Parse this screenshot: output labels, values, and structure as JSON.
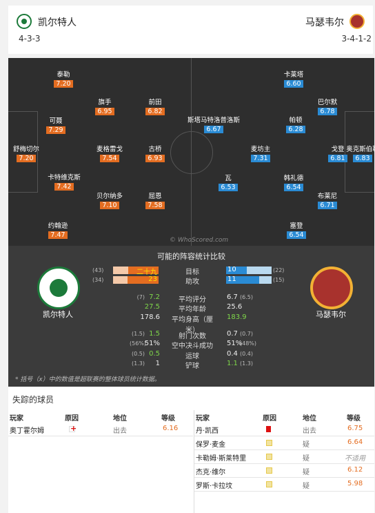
{
  "header": {
    "home_name": "凯尔特人",
    "away_name": "马瑟韦尔",
    "home_formation": "4-3-3",
    "away_formation": "3-4-1-2"
  },
  "pitch": {
    "watermark": "© WhoScored.com",
    "home_players": [
      {
        "name": "泰勒",
        "rating": "7.20"
      },
      {
        "name": "可聂",
        "rating": "7.29"
      },
      {
        "name": "舒梅切尔",
        "rating": "7.20"
      },
      {
        "name": "卡特维克斯",
        "rating": "7.42"
      },
      {
        "name": "约翰逊",
        "rating": "7.47"
      },
      {
        "name": "旗手",
        "rating": "6.95"
      },
      {
        "name": "前田",
        "rating": "6.82"
      },
      {
        "name": "麦格雷戈",
        "rating": "7.54"
      },
      {
        "name": "古桥",
        "rating": "6.93"
      },
      {
        "name": "贝尔纳多",
        "rating": "7.10"
      },
      {
        "name": "屈恩",
        "rating": "7.58"
      }
    ],
    "away_players": [
      {
        "name": "卡莱塔",
        "rating": "6.60"
      },
      {
        "name": "巴尔默",
        "rating": "6.78"
      },
      {
        "name": "斯塔马特洛普洛斯",
        "rating": "6.67"
      },
      {
        "name": "帕顿",
        "rating": "6.28"
      },
      {
        "name": "戈登",
        "rating": "6.81"
      },
      {
        "name": "奥克斯伯勒",
        "rating": "6.83"
      },
      {
        "name": "麦坊主",
        "rating": "7.31"
      },
      {
        "name": "瓦",
        "rating": "6.53"
      },
      {
        "name": "韩礼德",
        "rating": "6.54"
      },
      {
        "name": "布莱尼",
        "rating": "6.71"
      },
      {
        "name": "塞登",
        "rating": "6.54"
      }
    ]
  },
  "stats": {
    "title": "可能的阵容统计比较",
    "home_team": "凯尔特人",
    "away_team": "马瑟韦尔",
    "bars": [
      {
        "label": "目标",
        "home_val": "二十九",
        "home_paren": "(43)",
        "home_frac": 0.67,
        "away_val": "10",
        "away_paren": "(22)",
        "away_frac": 0.45
      },
      {
        "label": "助攻",
        "home_val": "23",
        "home_paren": "(34)",
        "home_frac": 0.68,
        "away_val": "11",
        "away_paren": "(15)",
        "away_frac": 0.73
      }
    ],
    "rows1": [
      {
        "label": "平均评分",
        "home_paren": "(7)",
        "home_val": "7.2",
        "home_green": true,
        "away_val": "6.7",
        "away_paren": "(6.5)",
        "away_green": false
      },
      {
        "label": "平均年龄",
        "home_paren": "",
        "home_val": "27.5",
        "home_green": true,
        "away_val": "25.6",
        "away_paren": "",
        "away_green": false
      },
      {
        "label": "平均身高（厘米）",
        "home_paren": "",
        "home_val": "178.6",
        "home_green": false,
        "away_val": "183.9",
        "away_paren": "",
        "away_green": true
      }
    ],
    "rows2": [
      {
        "label": "射门次数",
        "home_paren": "(1.5)",
        "home_val": "1.5",
        "home_green": true,
        "away_val": "0.7",
        "away_paren": "(0.7)",
        "away_green": false
      },
      {
        "label": "空中决斗成功",
        "home_paren": "(56%)",
        "home_val": "51%",
        "home_green": false,
        "away_val": "51%",
        "away_paren": "(48%)",
        "away_green": false
      },
      {
        "label": "运球",
        "home_paren": "(0.5)",
        "home_val": "0.5",
        "home_green": true,
        "away_val": "0.4",
        "away_paren": "(0.4)",
        "away_green": false
      },
      {
        "label": "铲球",
        "home_paren": "(1.3)",
        "home_val": "1",
        "home_green": false,
        "away_val": "1.1",
        "away_paren": "(1.3)",
        "away_green": true
      }
    ],
    "footnote": "* 括号（x）中的数值是超联赛的整体球员统计数据。"
  },
  "missing": {
    "title": "失踪的球员",
    "headers": {
      "player": "玩家",
      "reason": "原因",
      "status": "地位",
      "rating": "等级"
    },
    "home": [
      {
        "player": "奥丁霍尔姆",
        "reason": "injury",
        "status": "出去",
        "rating": "6.16"
      }
    ],
    "away": [
      {
        "player": "丹·凯西",
        "reason": "red",
        "status": "出去",
        "rating": "6.75"
      },
      {
        "player": "保罗·麦金",
        "reason": "doubt",
        "status": "疑",
        "rating": "6.64"
      },
      {
        "player": "卡勒姆·斯莱特里",
        "reason": "doubt",
        "status": "疑",
        "rating": "不适用"
      },
      {
        "player": "杰克·维尔",
        "reason": "doubt",
        "status": "疑",
        "rating": "6.12"
      },
      {
        "player": "罗斯·卡拉坟",
        "reason": "doubt",
        "status": "疑",
        "rating": "5.98"
      }
    ]
  }
}
